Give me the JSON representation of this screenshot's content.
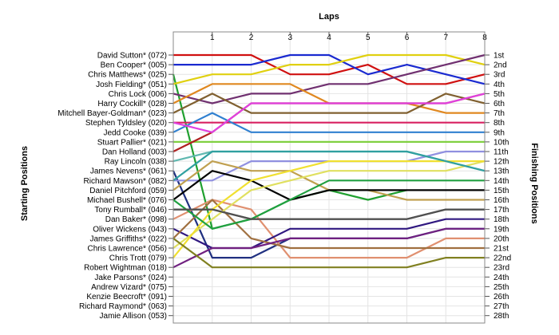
{
  "chart_data": {
    "type": "line",
    "title": "Laps",
    "ylabel_left": "Starting Positions",
    "ylabel_right": "Finishing Positions",
    "x": [
      0,
      1,
      2,
      3,
      4,
      5,
      6,
      7,
      8
    ],
    "x_tick_labels": [
      "1",
      "2",
      "3",
      "4",
      "5",
      "6",
      "7",
      "8"
    ],
    "drivers": [
      "David Sutton* (072)",
      "Ben Cooper* (005)",
      "Chris Matthews* (025)",
      "Josh Fielding* (051)",
      "Chris Lock (006)",
      "Harry Cockill* (028)",
      "Mitchell Bayer-Goldman* (023)",
      "Stephen Tyldsley (020)",
      "Jedd Cooke (039)",
      "Stuart Pallier* (021)",
      "Dan Holland (003)",
      "Ray Lincoln (038)",
      "James Nevens* (061)",
      "Richard Mawson* (082)",
      "Daniel Pitchford (059)",
      "Michael Bushell* (076)",
      "Tony Rumball* (046)",
      "Dan Baker* (098)",
      "Oliver Wickens (043)",
      "James Griffiths* (022)",
      "Chris Lawrence* (056)",
      "Chris Trott (079)",
      "Robert Wightman (018)",
      "Jake Parsons* (024)",
      "Andrew Vizard* (075)",
      "Kenzie Beecroft* (091)",
      "Richard Raymond* (063)",
      "Jamie Allison (053)"
    ],
    "finishing_labels": [
      "1st",
      "2nd",
      "3rd",
      "4th",
      "5th",
      "6th",
      "7th",
      "8th",
      "9th",
      "10th",
      "11th",
      "12th",
      "13th",
      "14th",
      "15th",
      "16th",
      "17th",
      "18th",
      "19th",
      "20th",
      "21st",
      "22nd",
      "23rd",
      "24th",
      "25th",
      "26th",
      "27th",
      "28th"
    ],
    "y_range": [
      1,
      28
    ],
    "grid": true,
    "series": [
      {
        "color": "#d01010",
        "positions": [
          1,
          1,
          1,
          3,
          3,
          2,
          4,
          4,
          3
        ]
      },
      {
        "color": "#1a2ad0",
        "positions": [
          2,
          2,
          2,
          1,
          1,
          3,
          2,
          3,
          4
        ]
      },
      {
        "color": "#20a030",
        "positions": [
          3,
          19,
          18,
          16,
          15,
          16,
          15,
          null,
          null
        ]
      },
      {
        "color": "#e0d010",
        "positions": [
          4,
          3,
          3,
          2,
          2,
          1,
          1,
          1,
          2
        ]
      },
      {
        "color": "#703070",
        "positions": [
          5,
          6,
          5,
          5,
          4,
          4,
          3,
          2,
          1
        ]
      },
      {
        "color": "#e08820",
        "positions": [
          6,
          4,
          4,
          4,
          6,
          6,
          6,
          7,
          7
        ]
      },
      {
        "color": "#806030",
        "positions": [
          7,
          5,
          7,
          7,
          7,
          7,
          7,
          5,
          6
        ]
      },
      {
        "color": "#d82060",
        "positions": [
          8,
          8,
          8,
          8,
          8,
          8,
          8,
          8,
          8
        ]
      },
      {
        "color": "#3080d0",
        "positions": [
          9,
          7,
          9,
          9,
          9,
          9,
          9,
          9,
          9
        ]
      },
      {
        "color": "#80d040",
        "positions": [
          10,
          10,
          10,
          10,
          10,
          10,
          10,
          10,
          10
        ]
      },
      {
        "color": "#b02020",
        "positions": [
          11,
          9,
          6,
          6,
          6,
          6,
          6,
          6,
          5
        ]
      },
      {
        "color": "#60b8b0",
        "positions": [
          12,
          11,
          11,
          11,
          11,
          11,
          11,
          12,
          13
        ]
      },
      {
        "color": "#203080",
        "positions": [
          13,
          22,
          22,
          20,
          20,
          20,
          20,
          19,
          19
        ]
      },
      {
        "color": "#9090e0",
        "positions": [
          14,
          14,
          12,
          12,
          12,
          12,
          12,
          11,
          11
        ]
      },
      {
        "color": "#c0a050",
        "positions": [
          15,
          12,
          13,
          13,
          15,
          15,
          16,
          16,
          16
        ]
      },
      {
        "color": "#000000",
        "positions": [
          16,
          13,
          14,
          16,
          15,
          15,
          15,
          15,
          15
        ]
      },
      {
        "color": "#404040",
        "positions": [
          17,
          17,
          18,
          18,
          18,
          18,
          18,
          17,
          17
        ]
      },
      {
        "color": "#e09070",
        "positions": [
          18,
          16,
          17,
          22,
          22,
          22,
          22,
          20,
          20
        ]
      },
      {
        "color": "#301880",
        "positions": [
          19,
          21,
          21,
          19,
          19,
          19,
          19,
          18,
          18
        ]
      },
      {
        "color": "#a07040",
        "positions": [
          20,
          16,
          20,
          21,
          21,
          21,
          21,
          21,
          21
        ]
      },
      {
        "color": "#e0e060",
        "positions": [
          21,
          18,
          15,
          14,
          13,
          13,
          13,
          13,
          12
        ]
      },
      {
        "color": "#f0e030",
        "positions": [
          22,
          17,
          14,
          13,
          12,
          12,
          12,
          12,
          12
        ]
      },
      {
        "color": "#702080",
        "positions": [
          23,
          21,
          21,
          20,
          20,
          20,
          20,
          19,
          19
        ]
      },
      {
        "color": "#808020",
        "positions": [
          20,
          23,
          23,
          23,
          23,
          23,
          23,
          22,
          22
        ]
      },
      {
        "color": "#e040e0",
        "positions": [
          8,
          9,
          6,
          6,
          6,
          6,
          6,
          6,
          5
        ]
      },
      {
        "color": "#30a0a0",
        "positions": [
          14,
          11,
          11,
          11,
          11,
          11,
          11,
          12,
          13
        ]
      },
      {
        "color": "#20a040",
        "positions": [
          16,
          19,
          18,
          16,
          14,
          14,
          14,
          14,
          14
        ]
      },
      {
        "color": "#505050",
        "positions": [
          17,
          17,
          18,
          18,
          18,
          18,
          18,
          17,
          17
        ]
      }
    ]
  }
}
